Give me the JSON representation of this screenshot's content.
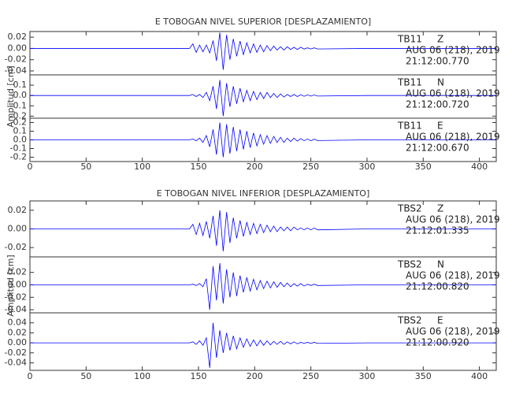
{
  "chart_data": [
    {
      "type": "line",
      "title": "E TOBOGAN NIVEL SUPERIOR [DESPLAZAMIENTO]",
      "ylabel": "Amplitud [cm]",
      "xlim": [
        0,
        415
      ],
      "xticks": [
        0,
        50,
        100,
        150,
        200,
        250,
        300,
        350,
        400
      ],
      "color": "#0000ff",
      "grid": false,
      "x": [
        0,
        142,
        145,
        148,
        151,
        154,
        157,
        160,
        163,
        166,
        169,
        172,
        175,
        178,
        181,
        184,
        187,
        190,
        193,
        196,
        199,
        202,
        205,
        208,
        211,
        214,
        217,
        220,
        223,
        226,
        229,
        232,
        235,
        238,
        241,
        244,
        247,
        250,
        253,
        256,
        300,
        415
      ],
      "panels": [
        {
          "station": "TB11",
          "component": "Z",
          "date": "AUG 06 (218), 2019",
          "time": "21:12:00.770",
          "ylim": [
            -0.047,
            0.03
          ],
          "yticks": [
            0.02,
            {
              "value": 0,
              "label": "0.00"
            },
            -0.02,
            -0.04
          ],
          "values": [
            0,
            0,
            0.008,
            -0.007,
            0.006,
            -0.006,
            0.006,
            -0.008,
            0.014,
            -0.022,
            0.028,
            -0.038,
            0.024,
            -0.02,
            0.017,
            -0.014,
            0.013,
            -0.011,
            0.01,
            -0.008,
            0.008,
            -0.007,
            0.006,
            -0.006,
            0.005,
            -0.004,
            0.004,
            -0.003,
            0.003,
            -0.003,
            0.003,
            -0.002,
            0.002,
            -0.002,
            0.002,
            -0.001,
            0.001,
            -0.001,
            0.001,
            -0.001,
            0,
            0
          ]
        },
        {
          "station": "TB11",
          "component": "N",
          "date": "AUG 06 (218), 2019",
          "time": "21:12:00.720",
          "ylim": [
            -0.22,
            0.2
          ],
          "yticks": [
            0.1,
            {
              "value": 0,
              "label": "0.0"
            },
            -0.1,
            -0.2
          ],
          "values": [
            0,
            0,
            0.01,
            -0.01,
            0.01,
            -0.02,
            0.03,
            -0.05,
            0.09,
            -0.13,
            0.15,
            -0.2,
            0.12,
            -0.11,
            0.09,
            -0.08,
            0.07,
            -0.06,
            0.05,
            -0.05,
            0.04,
            -0.04,
            0.03,
            -0.03,
            0.03,
            -0.02,
            0.02,
            -0.02,
            0.015,
            -0.015,
            0.01,
            -0.01,
            0.01,
            -0.01,
            0.008,
            -0.008,
            0.006,
            -0.006,
            0.005,
            -0.005,
            0,
            0
          ]
        },
        {
          "station": "TB11",
          "component": "E",
          "date": "AUG 06 (218), 2019",
          "time": "21:12:00.670",
          "ylim": [
            -0.25,
            0.25
          ],
          "yticks": [
            0.2,
            0.1,
            {
              "value": 0,
              "label": "0.0"
            },
            -0.1,
            -0.2
          ],
          "values": [
            0,
            0,
            0.01,
            -0.01,
            0.02,
            -0.03,
            0.05,
            -0.08,
            0.12,
            -0.17,
            0.2,
            -0.2,
            0.18,
            -0.16,
            0.15,
            -0.13,
            0.12,
            -0.11,
            0.1,
            -0.09,
            0.08,
            -0.07,
            0.06,
            -0.05,
            0.05,
            -0.04,
            0.04,
            -0.03,
            0.03,
            -0.03,
            0.02,
            -0.02,
            0.02,
            -0.015,
            0.015,
            -0.01,
            0.01,
            -0.01,
            0.008,
            -0.008,
            0,
            0
          ]
        }
      ]
    },
    {
      "type": "line",
      "title": "E TOBOGAN NIVEL INFERIOR [DESPLAZAMIENTO]",
      "ylabel": "Amplitud [cm]",
      "xlim": [
        0,
        415
      ],
      "xticks": [
        0,
        50,
        100,
        150,
        200,
        250,
        300,
        350,
        400
      ],
      "color": "#0000ff",
      "grid": false,
      "x": [
        0,
        142,
        145,
        148,
        151,
        154,
        157,
        160,
        163,
        166,
        169,
        172,
        175,
        178,
        181,
        184,
        187,
        190,
        193,
        196,
        199,
        202,
        205,
        208,
        211,
        214,
        217,
        220,
        223,
        226,
        229,
        232,
        235,
        238,
        241,
        244,
        247,
        250,
        253,
        256,
        300,
        415
      ],
      "panels": [
        {
          "station": "TBS2",
          "component": "Z",
          "date": "AUG 06 (218), 2019",
          "time": "21:12:01.335",
          "ylim": [
            -0.03,
            0.03
          ],
          "yticks": [
            0.02,
            {
              "value": 0,
              "label": "0.00"
            },
            -0.02
          ],
          "values": [
            0,
            0,
            0.005,
            -0.006,
            0.006,
            -0.007,
            0.008,
            -0.01,
            0.014,
            -0.018,
            0.02,
            -0.024,
            0.018,
            -0.015,
            0.012,
            -0.01,
            0.009,
            -0.008,
            0.007,
            -0.006,
            0.006,
            -0.005,
            0.005,
            -0.004,
            0.004,
            -0.003,
            0.003,
            -0.003,
            0.002,
            -0.002,
            0.002,
            -0.002,
            0.002,
            -0.001,
            0.001,
            -0.001,
            0.001,
            -0.001,
            0.001,
            -0.001,
            0,
            0
          ]
        },
        {
          "station": "TBS2",
          "component": "N",
          "date": "AUG 06 (218), 2019",
          "time": "21:12:00.820",
          "ylim": [
            -0.045,
            0.045
          ],
          "yticks": [
            0.02,
            {
              "value": 0,
              "label": "0.00"
            },
            -0.02,
            -0.04
          ],
          "values": [
            0,
            0,
            0.001,
            -0.001,
            0.002,
            -0.003,
            0.01,
            -0.04,
            0.03,
            -0.025,
            0.035,
            -0.03,
            0.025,
            -0.02,
            0.02,
            -0.018,
            0.015,
            -0.012,
            0.012,
            -0.01,
            0.009,
            -0.008,
            0.007,
            -0.006,
            0.006,
            -0.005,
            0.005,
            -0.004,
            0.004,
            -0.003,
            0.003,
            -0.003,
            0.002,
            -0.002,
            0.002,
            -0.002,
            0.001,
            -0.001,
            0.001,
            -0.001,
            0,
            0
          ]
        },
        {
          "station": "TBS2",
          "component": "E",
          "date": "AUG 06 (218), 2019",
          "time": "21:12:00.920",
          "ylim": [
            -0.055,
            0.06
          ],
          "yticks": [
            0.04,
            0.02,
            {
              "value": 0,
              "label": "0.00"
            },
            -0.02,
            -0.04
          ],
          "values": [
            0,
            0,
            0.002,
            -0.003,
            0.004,
            -0.005,
            0.01,
            -0.05,
            0.04,
            -0.03,
            0.025,
            -0.02,
            0.02,
            -0.015,
            0.014,
            -0.012,
            0.01,
            -0.009,
            0.008,
            -0.007,
            0.006,
            -0.006,
            0.005,
            -0.005,
            0.004,
            -0.004,
            0.003,
            -0.003,
            0.003,
            -0.003,
            0.002,
            -0.002,
            0.002,
            -0.002,
            0.001,
            -0.001,
            0.001,
            -0.001,
            0.001,
            -0.001,
            0,
            0
          ]
        }
      ]
    }
  ]
}
